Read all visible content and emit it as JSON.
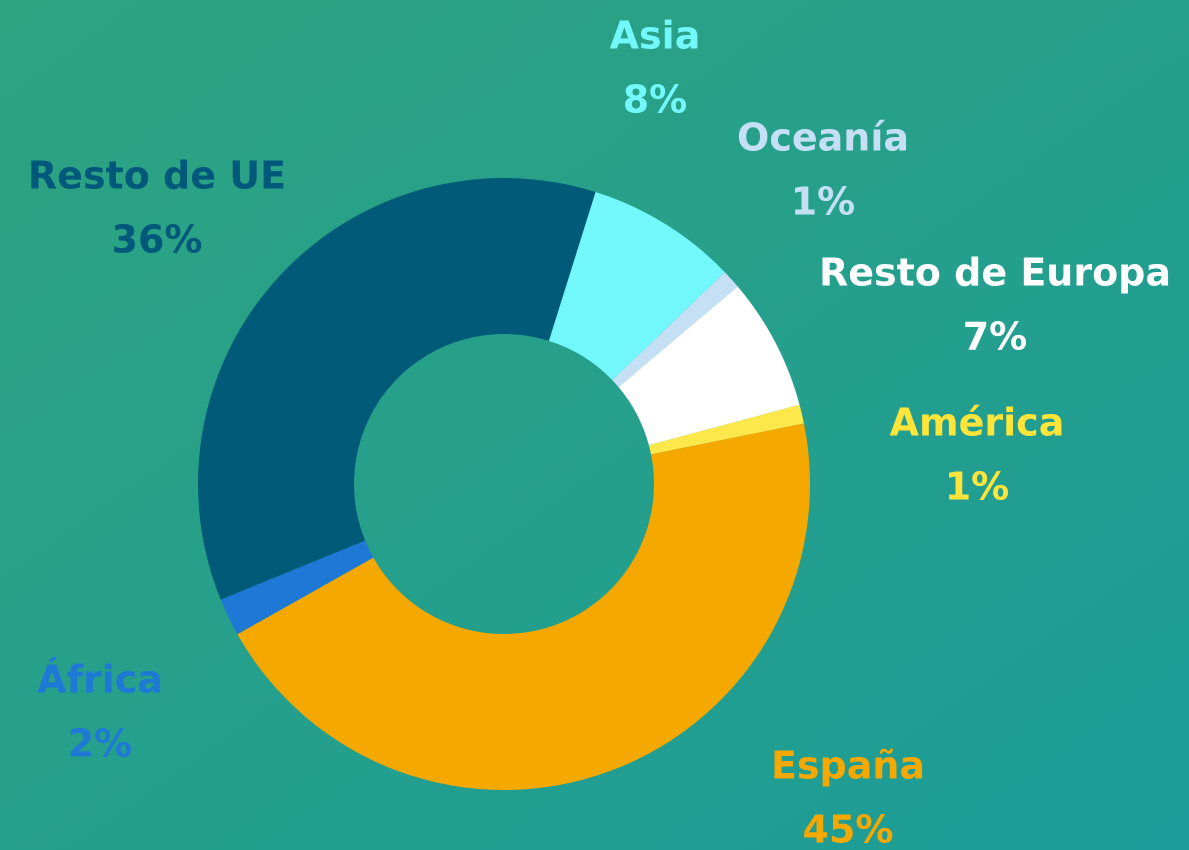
{
  "chart_data": {
    "type": "donut",
    "categories": [
      "Asia",
      "Oceanía",
      "Resto de Europa",
      "América",
      "España",
      "África",
      "Resto de UE"
    ],
    "values": [
      8,
      1,
      7,
      1,
      45,
      2,
      36
    ],
    "value_labels": [
      "8%",
      "1%",
      "7%",
      "1%",
      "45%",
      "2%",
      "36%"
    ],
    "colors": [
      "#72f7fb",
      "#c5e0f5",
      "#ffffff",
      "#fce84a",
      "#f5a800",
      "#1e78d6",
      "#005a78"
    ]
  }
}
